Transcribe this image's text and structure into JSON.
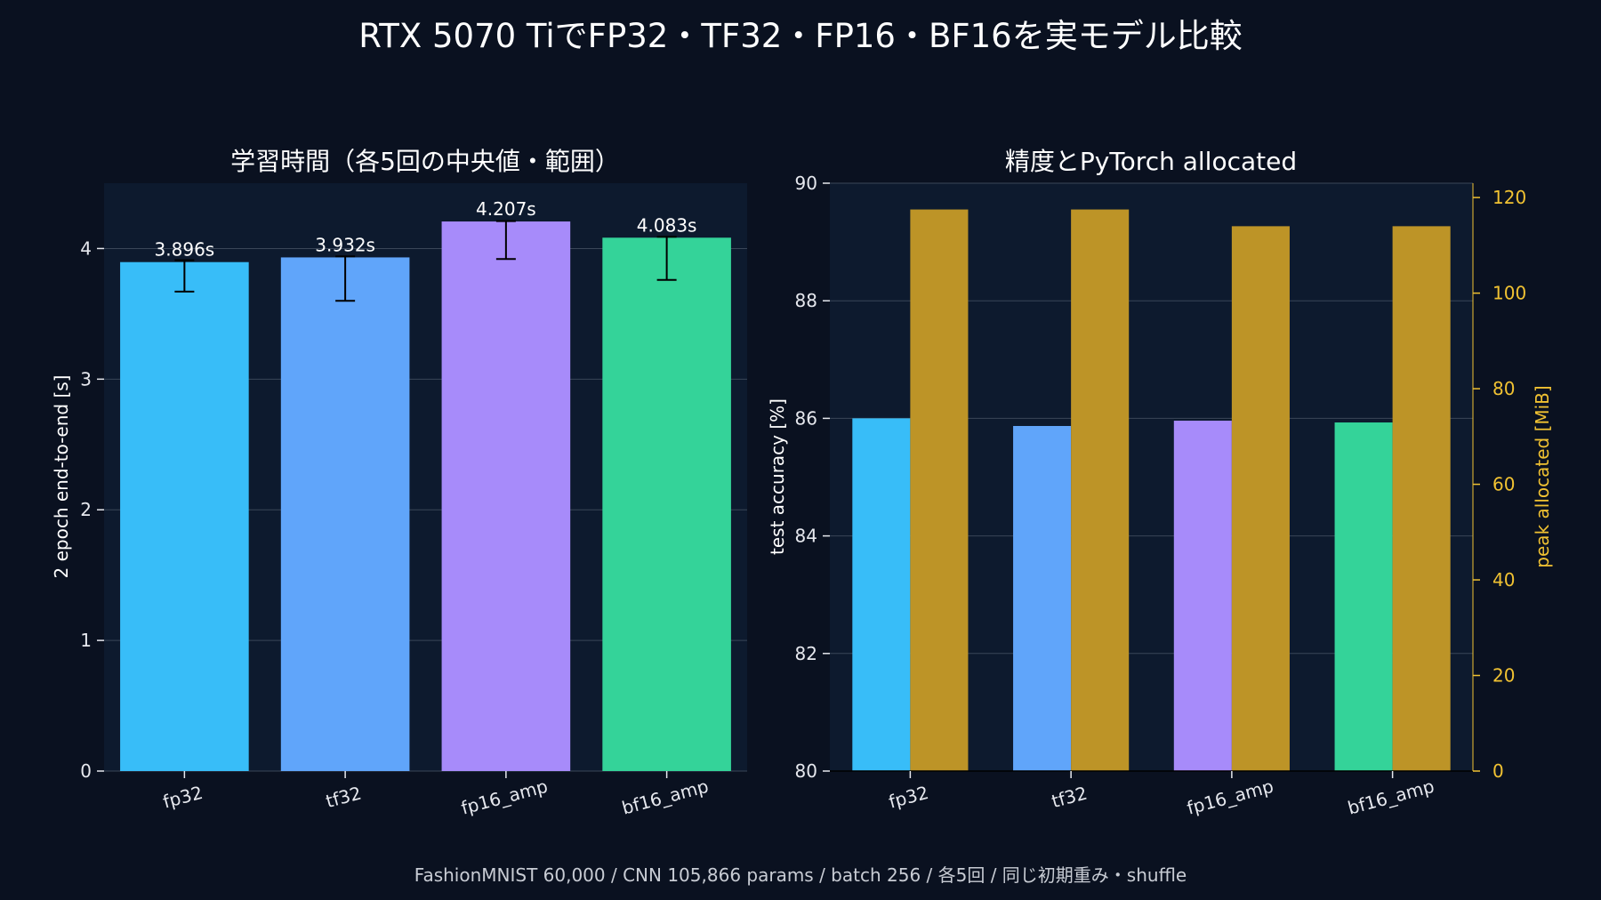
{
  "figure": {
    "title": "RTX 5070 TiでFP32・TF32・FP16・BF16を実モデル比較",
    "footnote": "FashionMNIST 60,000 / CNN 105,866 params / batch 256 / 各5回 / 同じ初期重み・shuffle"
  },
  "colors": {
    "background": "#0a1120",
    "plot_bg": "#0d1a2e",
    "text": "#ffffff",
    "tick_text": "#e6e8ee",
    "grid": "#3a4658",
    "secondary_axis": "#f1c232",
    "memory_bar": "#bd9427",
    "error_bar": "#000000"
  },
  "chart_data": [
    {
      "type": "bar",
      "title": "学習時間（各5回の中央値・範囲）",
      "xlabel": "",
      "ylabel": "2 epoch end-to-end [s]",
      "categories": [
        "fp32",
        "tf32",
        "fp16_amp",
        "bf16_amp"
      ],
      "values": [
        3.896,
        3.932,
        4.207,
        4.083
      ],
      "data_labels": [
        "3.896s",
        "3.932s",
        "4.207s",
        "4.083s"
      ],
      "error_low": [
        3.67,
        3.6,
        3.92,
        3.76
      ],
      "error_high": [
        3.91,
        3.94,
        4.21,
        4.09
      ],
      "bar_colors": [
        "#38bdf8",
        "#60a5fa",
        "#a78bfa",
        "#34d399"
      ],
      "ylim": [
        0,
        4.5
      ],
      "yticks": [
        0,
        1,
        2,
        3,
        4
      ],
      "grid": true
    },
    {
      "type": "bar",
      "title": "精度とPyTorch allocated",
      "xlabel": "",
      "ylabel": "test accuracy [%]",
      "ylabel_right": "peak allocated [MiB]",
      "categories": [
        "fp32",
        "tf32",
        "fp16_amp",
        "bf16_amp"
      ],
      "series": [
        {
          "axis": "left",
          "values": [
            86.0,
            85.87,
            85.96,
            85.93
          ],
          "colors": [
            "#38bdf8",
            "#60a5fa",
            "#a78bfa",
            "#34d399"
          ]
        },
        {
          "axis": "right",
          "values": [
            117.5,
            117.5,
            114.0,
            114.0
          ],
          "color": "#bd9427"
        }
      ],
      "ylim": [
        80,
        90
      ],
      "yticks": [
        80,
        82,
        84,
        86,
        88,
        90
      ],
      "ylim_right": [
        0,
        123
      ],
      "yticks_right": [
        0,
        20,
        40,
        60,
        80,
        100,
        120
      ],
      "grid": true
    }
  ]
}
